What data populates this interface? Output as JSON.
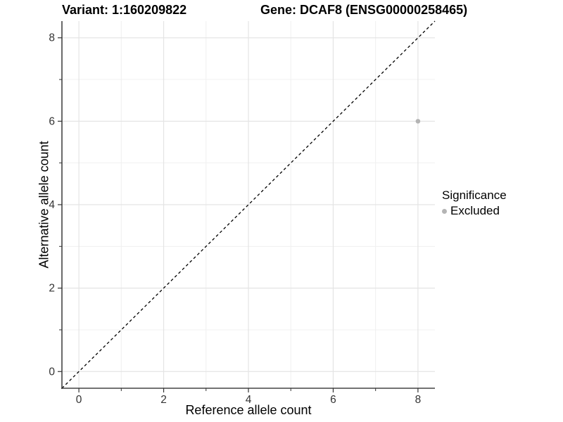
{
  "titles": {
    "variant": "Variant: 1:160209822",
    "gene": "Gene: DCAF8 (ENSG00000258465)"
  },
  "chart_data": {
    "type": "scatter",
    "xlabel": "Reference allele count",
    "ylabel": "Alternative allele count",
    "xlim": [
      -0.4,
      8.4
    ],
    "ylim": [
      -0.4,
      8.4
    ],
    "x_ticks": [
      0,
      2,
      4,
      6,
      8
    ],
    "y_ticks": [
      0,
      2,
      4,
      6,
      8
    ],
    "x_minor_ticks": [
      1,
      3,
      5,
      7
    ],
    "y_minor_ticks": [
      1,
      3,
      5,
      7
    ],
    "grid": true,
    "points": [
      {
        "x": 8,
        "y": 6,
        "series": "Excluded"
      }
    ],
    "reference_line": {
      "type": "identity",
      "style": "dashed",
      "from": -0.4,
      "to": 8.4
    },
    "legend": {
      "title": "Significance",
      "position": "right",
      "entries": [
        {
          "label": "Excluded",
          "color": "#b4b4b4",
          "marker": "circle"
        }
      ]
    }
  },
  "colors": {
    "point": "#b4b4b4",
    "grid_major": "#e4e4e4",
    "grid_minor": "#f0f0f0",
    "axis_line": "#444444",
    "tick_mark": "#333333",
    "tick_label": "#333333",
    "reference_line": "#000000",
    "text": "#000000",
    "background": "#ffffff"
  }
}
